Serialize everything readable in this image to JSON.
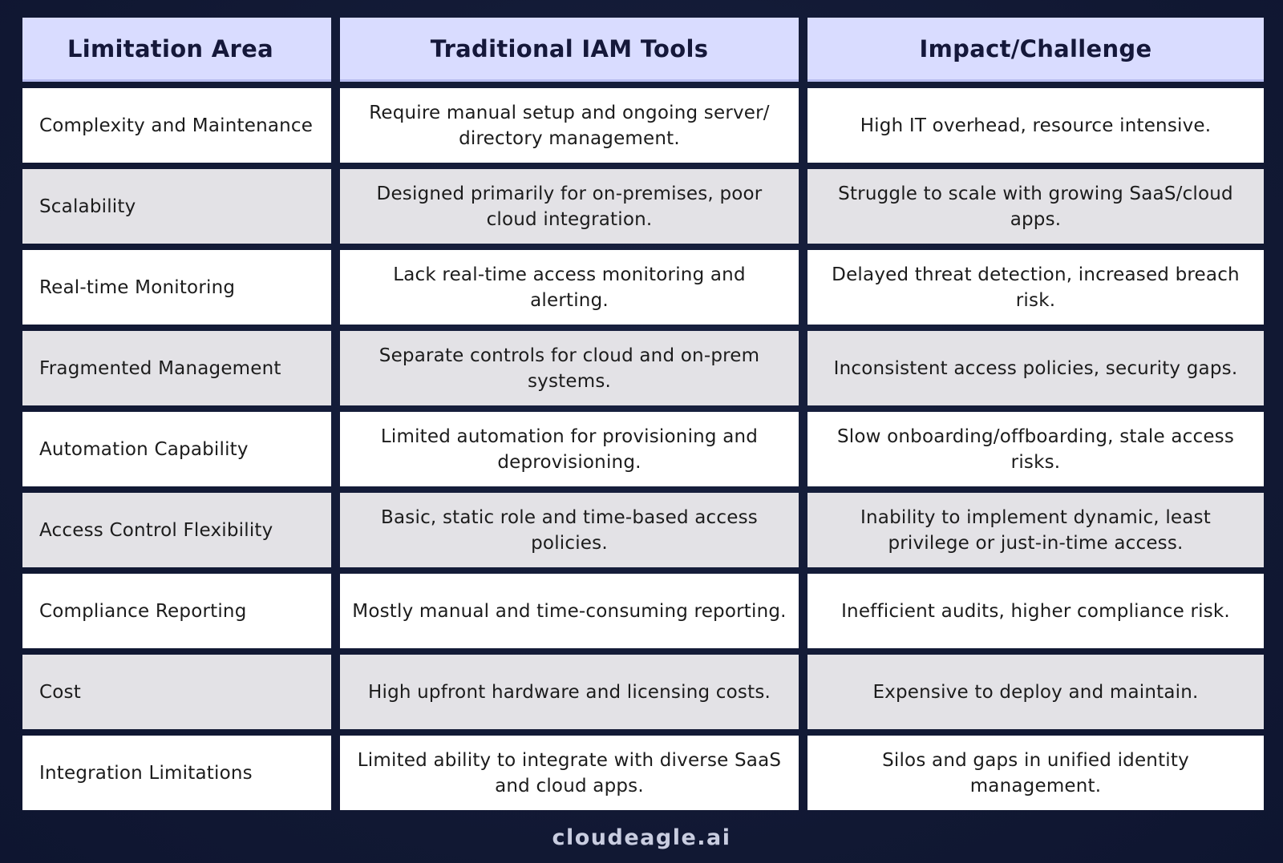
{
  "table": {
    "headers": [
      "Limitation Area",
      "Traditional IAM Tools",
      "Impact/Challenge"
    ],
    "rows": [
      [
        "Complexity and Maintenance",
        "Require manual setup and ongoing server/ directory management.",
        "High IT overhead, resource intensive."
      ],
      [
        "Scalability",
        "Designed primarily for on-premises, poor cloud integration.",
        "Struggle to scale with growing SaaS/cloud apps."
      ],
      [
        "Real-time Monitoring",
        "Lack real-time access monitoring and alerting.",
        "Delayed threat detection, increased breach risk."
      ],
      [
        "Fragmented Management",
        "Separate controls for cloud and on-prem systems.",
        "Inconsistent access policies, security gaps."
      ],
      [
        "Automation Capability",
        "Limited automation for provisioning and deprovisioning.",
        "Slow onboarding/offboarding, stale access risks."
      ],
      [
        "Access Control Flexibility",
        "Basic, static role and time-based access policies.",
        "Inability to implement dynamic, least privilege or just-in-time access."
      ],
      [
        "Compliance Reporting",
        "Mostly manual and time-consuming reporting.",
        "Inefficient audits, higher compliance risk."
      ],
      [
        "Cost",
        "High upfront hardware and licensing costs.",
        "Expensive to deploy and maintain."
      ],
      [
        "Integration Limitations",
        "Limited ability to integrate with diverse SaaS and cloud apps.",
        "Silos and gaps in unified identity management."
      ]
    ]
  },
  "brand": {
    "logo_text": "cloudeagle.ai"
  },
  "colors": {
    "header_bg": "#d9dcff",
    "row_white": "#ffffff",
    "row_grey": "#e3e2e6",
    "page_bg": "#121a33"
  }
}
